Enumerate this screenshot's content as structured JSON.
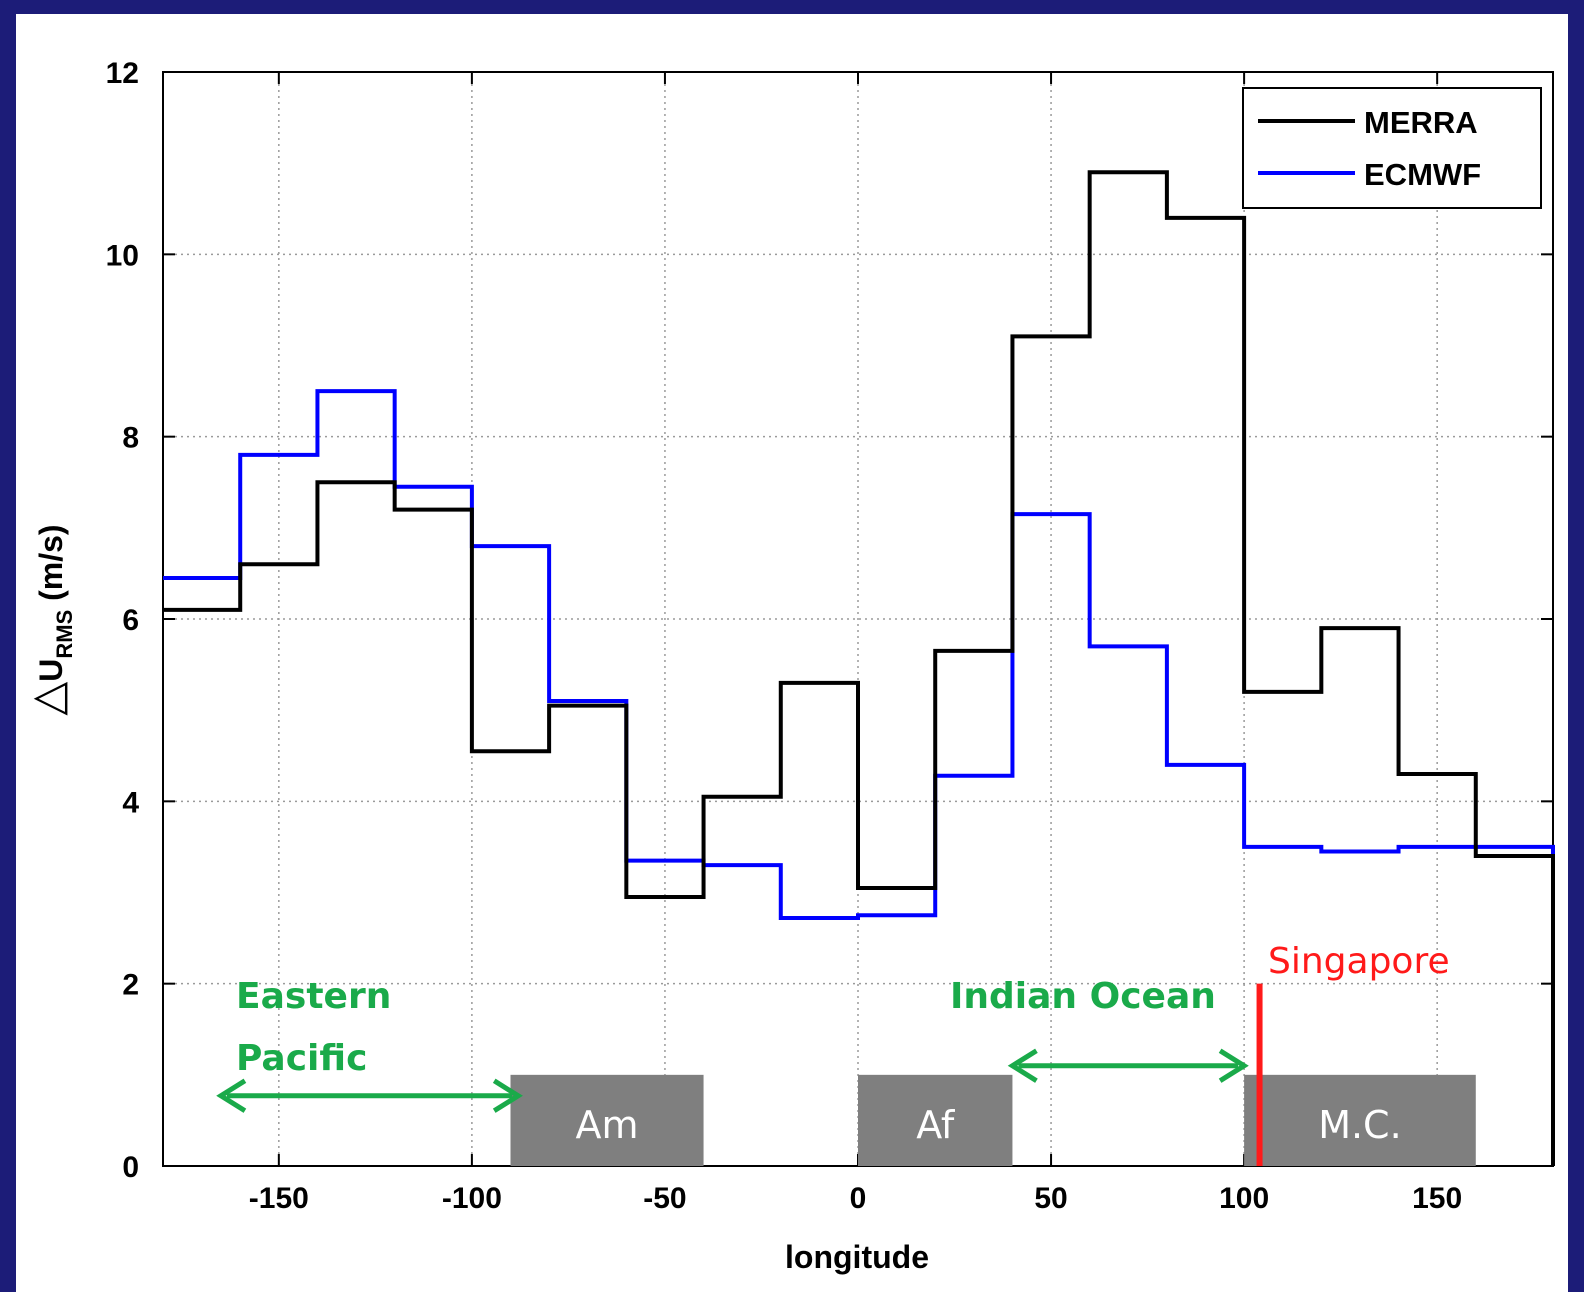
{
  "chart_data": {
    "type": "line",
    "subtype": "step",
    "xlabel": "longitude",
    "ylabel": {
      "delta": "△",
      "main": "U",
      "sub": "RMS",
      "unit": " (m/s)"
    },
    "xlim": [
      -180,
      180
    ],
    "ylim": [
      0,
      12
    ],
    "xticks": [
      -150,
      -100,
      -50,
      0,
      50,
      100,
      150
    ],
    "yticks": [
      0,
      2,
      4,
      6,
      8,
      10,
      12
    ],
    "grid": true,
    "legend_position": "top-right",
    "bin_edges": [
      -180,
      -160,
      -140,
      -120,
      -100,
      -80,
      -60,
      -40,
      -20,
      0,
      20,
      40,
      60,
      80,
      100,
      120,
      140,
      160,
      180
    ],
    "series": [
      {
        "name": "MERRA",
        "color": "#000000",
        "values": [
          6.1,
          6.6,
          7.5,
          7.2,
          4.55,
          5.05,
          2.95,
          4.05,
          5.3,
          3.05,
          5.65,
          9.1,
          10.9,
          10.4,
          5.2,
          5.9,
          4.3,
          3.4
        ]
      },
      {
        "name": "ECMWF",
        "color": "#0000ff",
        "values": [
          6.45,
          7.8,
          8.5,
          7.45,
          6.8,
          5.1,
          3.35,
          3.3,
          2.72,
          2.75,
          4.28,
          7.15,
          5.7,
          4.4,
          3.5,
          3.45,
          3.5,
          3.5
        ]
      }
    ],
    "regions": [
      {
        "label": "Am",
        "x0": -90,
        "x1": -40,
        "y1": 1.0
      },
      {
        "label": "Af",
        "x0": 0,
        "x1": 40,
        "y1": 1.0
      },
      {
        "label": "M.C.",
        "x0": 100,
        "x1": 160,
        "y1": 1.0
      }
    ],
    "annotations": {
      "eastern_pacific": {
        "line1": "Eastern",
        "line2": "Pacific",
        "arrow": [
          -165,
          -88
        ],
        "arrow_y": 0.77,
        "color": "#1aaa4a"
      },
      "indian_ocean": {
        "text": "Indian Ocean",
        "arrow": [
          40,
          100
        ],
        "arrow_y": 1.1,
        "color": "#1aaa4a"
      },
      "singapore": {
        "text": "Singapore",
        "x": 104,
        "y1": 2.0,
        "color": "#ff1a1a"
      }
    }
  }
}
